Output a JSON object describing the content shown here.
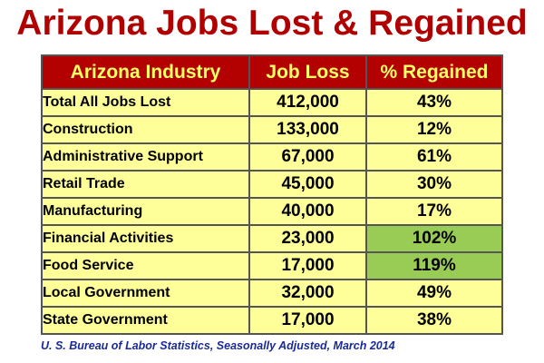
{
  "title": "Arizona Jobs Lost & Regained",
  "table": {
    "headers": [
      "Arizona Industry",
      "Job Loss",
      "% Regained"
    ],
    "rows": [
      {
        "industry": "Total All Jobs Lost",
        "job_loss": "412,000",
        "regained": "43%",
        "highlight": false
      },
      {
        "industry": "Construction",
        "job_loss": "133,000",
        "regained": "12%",
        "highlight": false
      },
      {
        "industry": "Administrative Support",
        "job_loss": "67,000",
        "regained": "61%",
        "highlight": false
      },
      {
        "industry": "Retail Trade",
        "job_loss": "45,000",
        "regained": "30%",
        "highlight": false
      },
      {
        "industry": "Manufacturing",
        "job_loss": "40,000",
        "regained": "17%",
        "highlight": false
      },
      {
        "industry": "Financial Activities",
        "job_loss": "23,000",
        "regained": "102%",
        "highlight": true
      },
      {
        "industry": "Food Service",
        "job_loss": "17,000",
        "regained": "119%",
        "highlight": true
      },
      {
        "industry": "Local Government",
        "job_loss": "32,000",
        "regained": "49%",
        "highlight": false
      },
      {
        "industry": "State Government",
        "job_loss": "17,000",
        "regained": "38%",
        "highlight": false
      }
    ]
  },
  "source": "U. S. Bureau of Labor Statistics, Seasonally Adjusted, March 2014",
  "colors": {
    "title": "#b00000",
    "header_bg": "#b30000",
    "header_text": "#ffff66",
    "cell_bg": "#ffff99",
    "highlight_bg": "#99cc55",
    "source_text": "#1a2a99"
  }
}
